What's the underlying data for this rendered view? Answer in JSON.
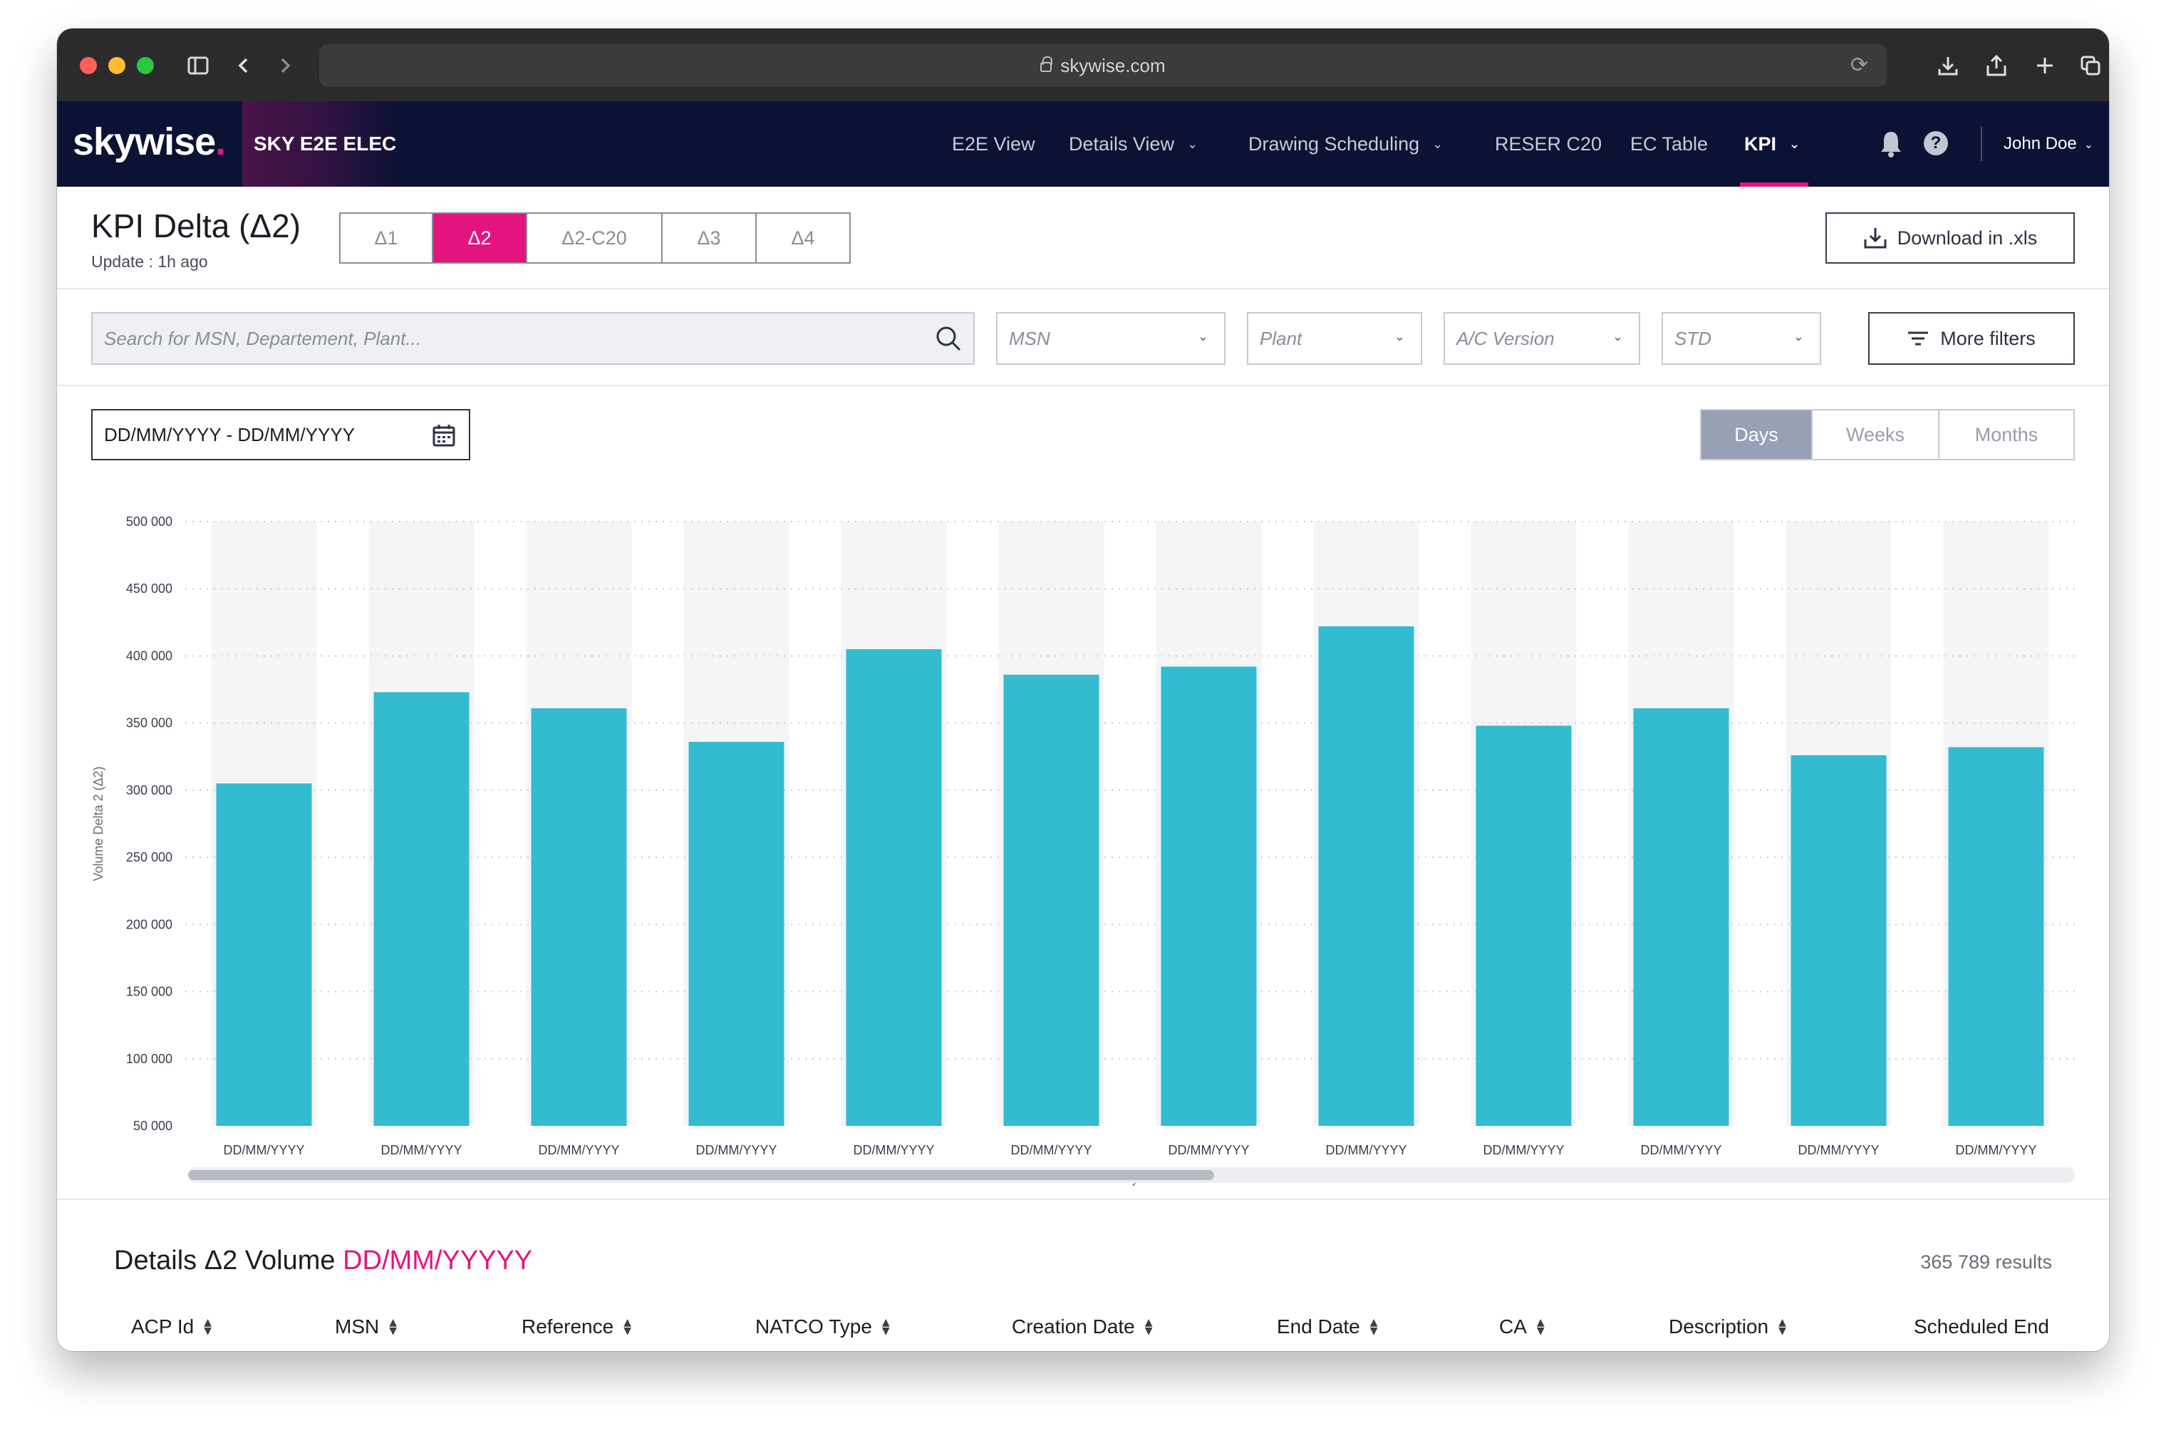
{
  "browser": {
    "url": "skywise.com"
  },
  "app": {
    "logo": "skywise",
    "logo_dot": ".",
    "product": "SKY E2E ELEC",
    "nav": [
      {
        "label": "E2E View",
        "dropdown": false
      },
      {
        "label": "Details View",
        "dropdown": true
      },
      {
        "label": "Drawing Scheduling",
        "dropdown": true
      },
      {
        "label": "RESER C20",
        "dropdown": false
      },
      {
        "label": "EC Table",
        "dropdown": false
      },
      {
        "label": "KPI",
        "dropdown": true,
        "active": true
      }
    ],
    "help": "?",
    "user": "John Doe",
    "accent": "#e4147f",
    "header_bg": "#0c1233"
  },
  "kpi": {
    "title": "KPI Delta (Δ2)",
    "update": "Update : 1h ago",
    "tabs": [
      "Δ1",
      "Δ2",
      "Δ2-C20",
      "Δ3",
      "Δ4"
    ],
    "active_tab": "Δ2",
    "download_label": "Download in .xls"
  },
  "filters": {
    "search_placeholder": "Search for MSN, Departement, Plant...",
    "selects": [
      "MSN",
      "Plant",
      "A/C Version",
      "STD"
    ],
    "more_filters": "More filters"
  },
  "date_range": {
    "value": "DD/MM/YYYY - DD/MM/YYYY"
  },
  "view": {
    "options": [
      "Days",
      "Weeks",
      "Months"
    ],
    "active": "Days"
  },
  "chart_data": {
    "type": "bar",
    "categories": [
      "DD/MM/YYYY",
      "DD/MM/YYYY",
      "DD/MM/YYYY",
      "DD/MM/YYYY",
      "DD/MM/YYYY",
      "DD/MM/YYYY",
      "DD/MM/YYYY",
      "DD/MM/YYYY",
      "DD/MM/YYYY",
      "DD/MM/YYYY",
      "DD/MM/YYYY",
      "DD/MM/YYYY"
    ],
    "values": [
      305000,
      373000,
      361000,
      336000,
      405000,
      386000,
      392000,
      422000,
      348000,
      361000,
      326000,
      332000
    ],
    "xlabel": "Days",
    "ylabel": "Volume Delta 2 (Δ2)",
    "ylim": [
      50000,
      500000
    ],
    "yticks": [
      500000,
      450000,
      400000,
      350000,
      300000,
      250000,
      200000,
      150000,
      100000,
      50000
    ],
    "ytick_labels": [
      "500 000",
      "450 000",
      "400 000",
      "350 000",
      "300 000",
      "250 000",
      "200 000",
      "150 000",
      "100 000",
      "50 000"
    ],
    "grid": "dotted horizontal",
    "bar_color": "#33bbd0",
    "background_bar_color": "#f4f5f7"
  },
  "details": {
    "title": "Details Δ2 Volume",
    "date": "DD/MM/YYYYY",
    "results": "365 789 results",
    "columns": [
      "ACP Id",
      "MSN",
      "Reference",
      "NATCO Type",
      "Creation Date",
      "End Date",
      "CA",
      "Description",
      "Scheduled End"
    ]
  }
}
